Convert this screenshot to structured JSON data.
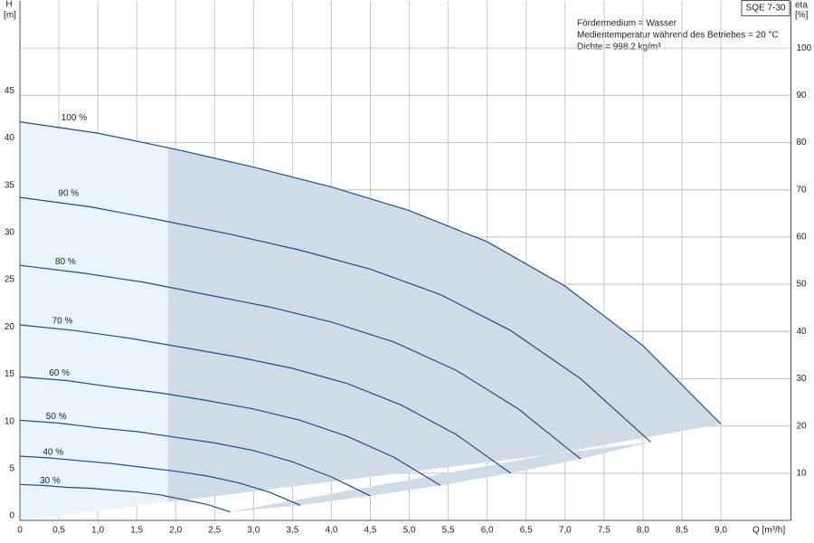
{
  "chart_data": {
    "type": "line",
    "title": "SQE 7-30",
    "annotations": [
      "Fördermedium = Wasser",
      "Medientemperatur während des Betriebes = 20 °C",
      "Dichte = 998.2 kg/m³"
    ],
    "x_label": "Q [m³/h]",
    "y_label": "H",
    "y_unit": "[m]",
    "y2_label": "eta",
    "y2_unit": "[%]",
    "xlim": [
      0,
      9.9
    ],
    "ylim": [
      0,
      55
    ],
    "y2lim": [
      0,
      110
    ],
    "xticks": [
      0,
      {
        "value": 0.5,
        "label": "0,5"
      },
      {
        "value": 1,
        "label": "1,0"
      },
      {
        "value": 1.5,
        "label": "1,5"
      },
      {
        "value": 2,
        "label": "2,0"
      },
      {
        "value": 2.5,
        "label": "2,5"
      },
      {
        "value": 3,
        "label": "3,0"
      },
      {
        "value": 3.5,
        "label": "3,5"
      },
      {
        "value": 4,
        "label": "4,0"
      },
      {
        "value": 4.5,
        "label": "4,5"
      },
      {
        "value": 5,
        "label": "5,0"
      },
      {
        "value": 5.5,
        "label": "5,5"
      },
      {
        "value": 6,
        "label": "6,0"
      },
      {
        "value": 6.5,
        "label": "6,5"
      },
      {
        "value": 7,
        "label": "7,0"
      },
      {
        "value": 7.5,
        "label": "7,5"
      },
      {
        "value": 8,
        "label": "8,0"
      },
      {
        "value": 8.5,
        "label": "8,5"
      },
      {
        "value": 9,
        "label": "9,0"
      }
    ],
    "yticks": [
      0,
      5,
      10,
      15,
      20,
      25,
      30,
      35,
      40,
      45
    ],
    "y2ticks": [
      10,
      20,
      30,
      40,
      50,
      60,
      70,
      80,
      90,
      100
    ],
    "grid": true,
    "operating_range_start": 1.9,
    "series": [
      {
        "name": "100 %",
        "color": "#1d4d8c",
        "x": [
          0,
          1,
          2,
          3,
          4,
          5,
          6,
          7,
          8,
          9
        ],
        "values": [
          42.2,
          41.0,
          39.3,
          37.4,
          35.3,
          32.8,
          29.5,
          24.8,
          18.5,
          10.2
        ]
      },
      {
        "name": "90 %",
        "color": "#1d4d8c",
        "x": [
          0,
          0.9,
          1.8,
          2.7,
          3.6,
          4.5,
          5.4,
          6.3,
          7.2,
          8.1
        ],
        "values": [
          34.2,
          33.2,
          31.8,
          30.3,
          28.6,
          26.6,
          23.9,
          20.1,
          15.0,
          8.3
        ]
      },
      {
        "name": "80 %",
        "color": "#1d4d8c",
        "x": [
          0,
          0.8,
          1.6,
          2.4,
          3.2,
          4.0,
          4.8,
          5.6,
          6.4,
          7.2
        ],
        "values": [
          27.0,
          26.2,
          25.2,
          23.9,
          22.6,
          21.0,
          18.9,
          15.9,
          11.8,
          6.5
        ]
      },
      {
        "name": "70 %",
        "color": "#1d4d8c",
        "x": [
          0,
          0.7,
          1.4,
          2.1,
          2.8,
          3.5,
          4.2,
          4.9,
          5.6,
          6.3
        ],
        "values": [
          20.7,
          20.1,
          19.3,
          18.3,
          17.3,
          16.1,
          14.5,
          12.2,
          9.1,
          5.0
        ]
      },
      {
        "name": "60 %",
        "color": "#1d4d8c",
        "x": [
          0,
          0.6,
          1.2,
          1.8,
          2.4,
          3.0,
          3.6,
          4.2,
          4.8,
          5.4
        ],
        "values": [
          15.2,
          14.8,
          14.1,
          13.5,
          12.7,
          11.8,
          10.6,
          8.9,
          6.7,
          3.7
        ]
      },
      {
        "name": "50 %",
        "color": "#1d4d8c",
        "x": [
          0,
          0.5,
          1.0,
          1.5,
          2.0,
          2.5,
          3.0,
          3.5,
          4.0,
          4.5
        ],
        "values": [
          10.6,
          10.3,
          9.8,
          9.4,
          8.8,
          8.2,
          7.4,
          6.2,
          4.6,
          2.6
        ]
      },
      {
        "name": "40 %",
        "color": "#1d4d8c",
        "x": [
          0,
          0.4,
          0.8,
          1.2,
          1.6,
          2.0,
          2.4,
          2.8,
          3.2,
          3.6
        ],
        "values": [
          6.8,
          6.6,
          6.3,
          6.0,
          5.6,
          5.2,
          4.7,
          4.0,
          3.0,
          1.6
        ]
      },
      {
        "name": "30 %",
        "color": "#1d4d8c",
        "x": [
          0,
          0.3,
          0.6,
          0.9,
          1.2,
          1.5,
          1.8,
          2.1,
          2.4,
          2.7
        ],
        "values": [
          3.8,
          3.7,
          3.5,
          3.4,
          3.2,
          3.0,
          2.7,
          2.2,
          1.7,
          0.9
        ]
      }
    ]
  }
}
